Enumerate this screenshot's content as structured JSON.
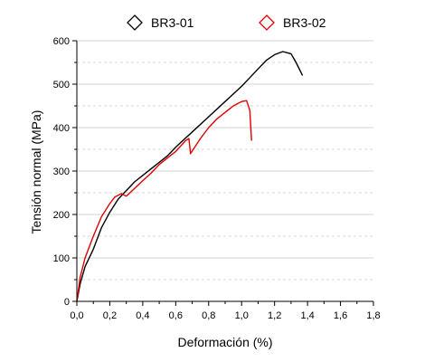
{
  "chart_data": {
    "type": "line",
    "xlabel": "Deformación (%)",
    "ylabel": "Tensión normal (MPa)",
    "xlim": [
      0,
      1.8
    ],
    "ylim": [
      0,
      600
    ],
    "x_ticks": [
      "0,0",
      "0,2",
      "0,4",
      "0,6",
      "0,8",
      "1,0",
      "1,2",
      "1,4",
      "1,6",
      "1,8"
    ],
    "x_tick_values": [
      0,
      0.2,
      0.4,
      0.6,
      0.8,
      1.0,
      1.2,
      1.4,
      1.6,
      1.8
    ],
    "y_ticks": [
      "0",
      "100",
      "200",
      "300",
      "400",
      "500",
      "600"
    ],
    "y_tick_values": [
      0,
      100,
      200,
      300,
      400,
      500,
      600
    ],
    "grid": {
      "major_solid": true,
      "minor_dashed": true
    },
    "legend_position": "top",
    "series": [
      {
        "name": "BR3-01",
        "color": "#000000",
        "marker": "diamond-open",
        "points": [
          [
            0.0,
            0
          ],
          [
            0.02,
            40
          ],
          [
            0.05,
            80
          ],
          [
            0.1,
            120
          ],
          [
            0.15,
            170
          ],
          [
            0.2,
            205
          ],
          [
            0.25,
            235
          ],
          [
            0.3,
            255
          ],
          [
            0.35,
            275
          ],
          [
            0.4,
            290
          ],
          [
            0.45,
            305
          ],
          [
            0.5,
            320
          ],
          [
            0.55,
            335
          ],
          [
            0.6,
            355
          ],
          [
            0.7,
            390
          ],
          [
            0.8,
            425
          ],
          [
            0.9,
            460
          ],
          [
            1.0,
            495
          ],
          [
            1.05,
            515
          ],
          [
            1.1,
            535
          ],
          [
            1.15,
            555
          ],
          [
            1.2,
            568
          ],
          [
            1.25,
            575
          ],
          [
            1.3,
            570
          ],
          [
            1.33,
            550
          ],
          [
            1.37,
            520
          ]
        ]
      },
      {
        "name": "BR3-02",
        "color": "#e00000",
        "marker": "diamond-open",
        "points": [
          [
            0.0,
            0
          ],
          [
            0.02,
            55
          ],
          [
            0.05,
            100
          ],
          [
            0.1,
            150
          ],
          [
            0.15,
            195
          ],
          [
            0.2,
            225
          ],
          [
            0.23,
            240
          ],
          [
            0.27,
            248
          ],
          [
            0.3,
            242
          ],
          [
            0.35,
            260
          ],
          [
            0.4,
            278
          ],
          [
            0.45,
            295
          ],
          [
            0.5,
            315
          ],
          [
            0.55,
            330
          ],
          [
            0.6,
            345
          ],
          [
            0.66,
            370
          ],
          [
            0.68,
            375
          ],
          [
            0.69,
            340
          ],
          [
            0.75,
            375
          ],
          [
            0.8,
            400
          ],
          [
            0.85,
            420
          ],
          [
            0.9,
            435
          ],
          [
            0.95,
            450
          ],
          [
            1.0,
            460
          ],
          [
            1.03,
            462
          ],
          [
            1.05,
            440
          ],
          [
            1.06,
            370
          ]
        ]
      }
    ]
  }
}
